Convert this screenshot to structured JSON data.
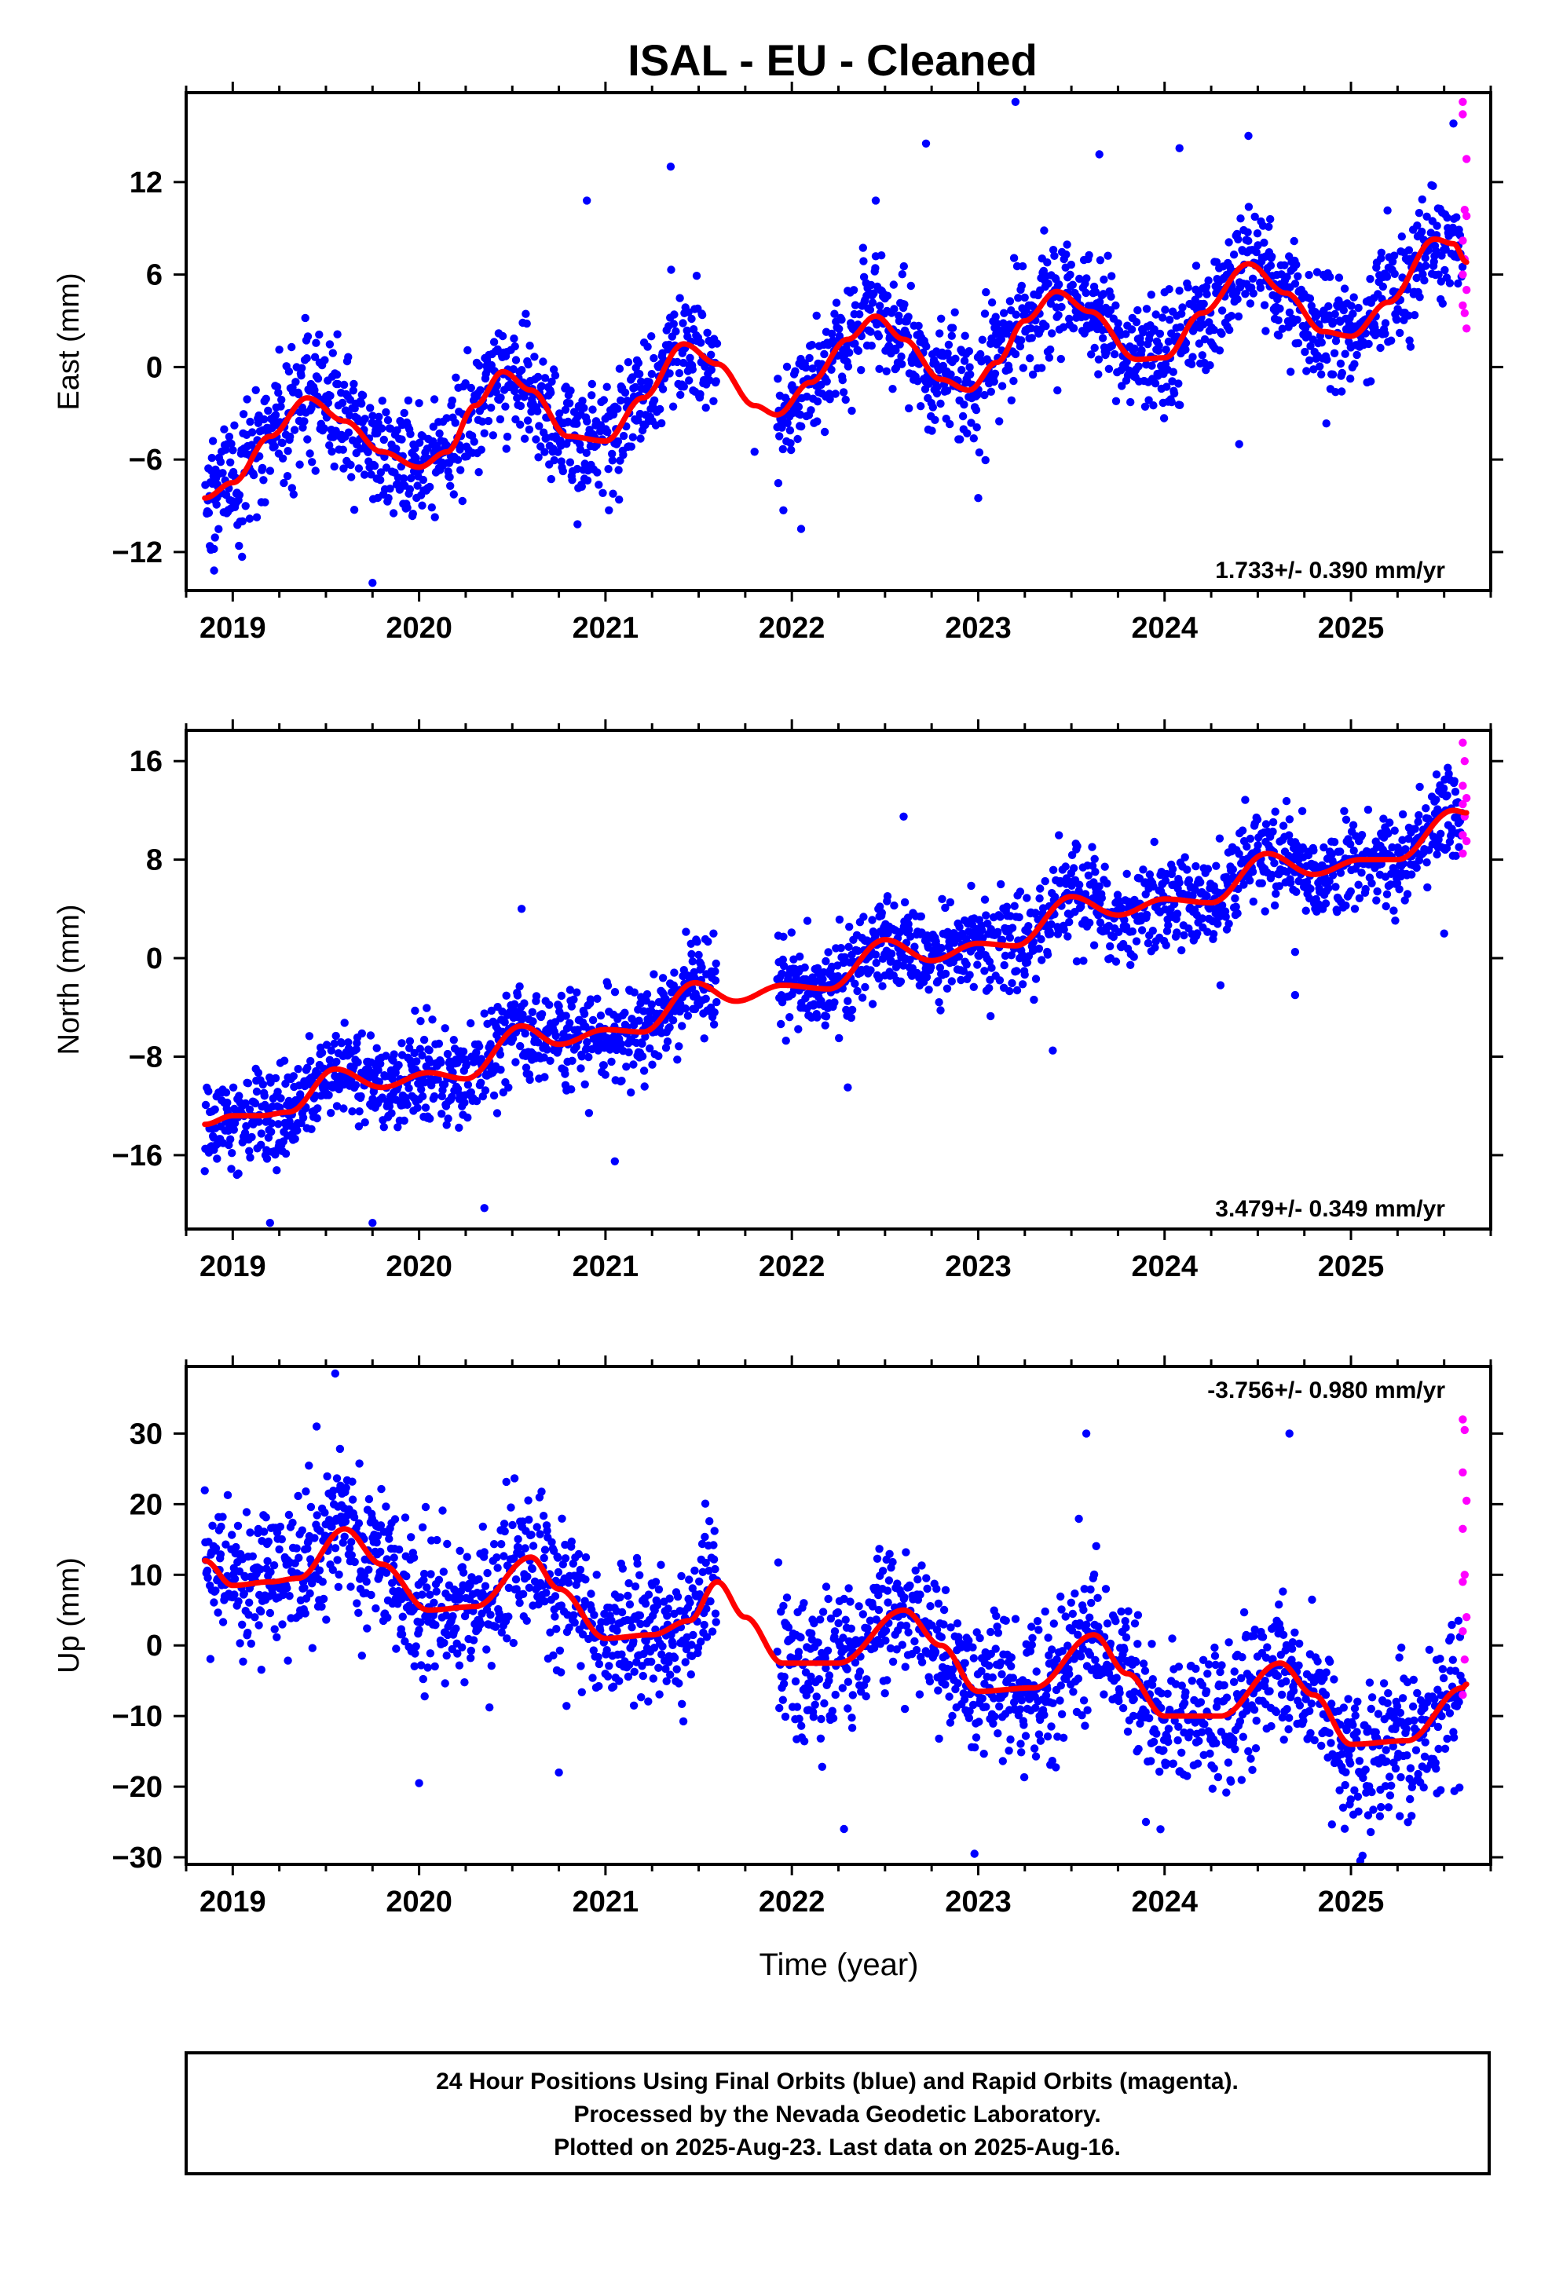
{
  "title": "ISAL  - EU - Cleaned",
  "xlabel": "Time (year)",
  "footer": [
    "24 Hour Positions Using Final Orbits (blue) and Rapid Orbits (magenta).",
    "Processed by the Nevada Geodetic Laboratory.",
    "Plotted on 2025-Aug-23. Last data on 2025-Aug-16."
  ],
  "colors": {
    "final_orbits": "#0000ff",
    "rapid_orbits": "#ff00ff",
    "model_fit": "#ff0000"
  },
  "chart_data": [
    {
      "type": "scatter",
      "component": "East",
      "ylabel": "East (mm)",
      "xlim": [
        2018.75,
        2025.75
      ],
      "ylim": [
        -14.5,
        17.8
      ],
      "xticks": [
        2019,
        2020,
        2021,
        2022,
        2023,
        2024,
        2025
      ],
      "yticks": [
        -12,
        -6,
        0,
        6,
        12
      ],
      "rate_label": "1.733+/- 0.390 mm/yr",
      "rate_position": "bottom-right",
      "data_start": 2018.85,
      "data_end": 2025.62,
      "data_gap": [
        2021.6,
        2021.92
      ],
      "scatter_sd": 1.9,
      "fit_curve": [
        [
          2018.85,
          -8.5
        ],
        [
          2019.0,
          -7.5
        ],
        [
          2019.2,
          -4.5
        ],
        [
          2019.4,
          -2.0
        ],
        [
          2019.6,
          -3.5
        ],
        [
          2019.8,
          -5.5
        ],
        [
          2020.0,
          -6.5
        ],
        [
          2020.15,
          -5.5
        ],
        [
          2020.3,
          -2.5
        ],
        [
          2020.45,
          -0.3
        ],
        [
          2020.6,
          -1.5
        ],
        [
          2020.8,
          -4.5
        ],
        [
          2021.0,
          -4.8
        ],
        [
          2021.2,
          -2.0
        ],
        [
          2021.42,
          1.5
        ],
        [
          2021.6,
          0.2
        ],
        [
          2021.8,
          -2.5
        ],
        [
          2021.92,
          -3.1
        ],
        [
          2022.1,
          -1.0
        ],
        [
          2022.3,
          1.8
        ],
        [
          2022.45,
          3.3
        ],
        [
          2022.6,
          1.8
        ],
        [
          2022.8,
          -0.8
        ],
        [
          2022.95,
          -1.5
        ],
        [
          2023.1,
          0.3
        ],
        [
          2023.25,
          3.0
        ],
        [
          2023.42,
          4.9
        ],
        [
          2023.6,
          3.6
        ],
        [
          2023.85,
          0.5
        ],
        [
          2024.0,
          0.6
        ],
        [
          2024.2,
          3.5
        ],
        [
          2024.45,
          6.7
        ],
        [
          2024.65,
          4.8
        ],
        [
          2024.85,
          2.3
        ],
        [
          2025.0,
          2.0
        ],
        [
          2025.2,
          4.2
        ],
        [
          2025.45,
          8.3
        ],
        [
          2025.55,
          8.0
        ],
        [
          2025.62,
          6.8
        ]
      ],
      "outliers": [
        [
          2019.75,
          -14.0
        ],
        [
          2018.9,
          -13.2
        ],
        [
          2021.35,
          13.0
        ],
        [
          2023.2,
          17.2
        ],
        [
          2022.72,
          14.5
        ],
        [
          2024.45,
          15.0
        ],
        [
          2024.08,
          14.2
        ],
        [
          2023.65,
          13.8
        ],
        [
          2020.9,
          10.8
        ],
        [
          2023.0,
          -8.5
        ],
        [
          2022.05,
          -10.5
        ],
        [
          2020.85,
          -10.2
        ],
        [
          2021.8,
          -5.5
        ],
        [
          2024.4,
          -5.0
        ],
        [
          2025.55,
          15.8
        ],
        [
          2022.45,
          10.8
        ]
      ],
      "rapid_points": [
        [
          2025.6,
          17.2
        ],
        [
          2025.6,
          16.4
        ],
        [
          2025.62,
          13.5
        ],
        [
          2025.61,
          10.2
        ],
        [
          2025.62,
          9.8
        ],
        [
          2025.6,
          8.2
        ],
        [
          2025.61,
          7.0
        ],
        [
          2025.6,
          6.0
        ],
        [
          2025.62,
          5.0
        ],
        [
          2025.6,
          4.0
        ],
        [
          2025.61,
          3.5
        ],
        [
          2025.62,
          2.5
        ]
      ]
    },
    {
      "type": "scatter",
      "component": "North",
      "ylabel": "North (mm)",
      "xlim": [
        2018.75,
        2025.75
      ],
      "ylim": [
        -22.0,
        18.5
      ],
      "xticks": [
        2019,
        2020,
        2021,
        2022,
        2023,
        2024,
        2025
      ],
      "yticks": [
        -16,
        -8,
        0,
        8,
        16
      ],
      "rate_label": "3.479+/- 0.349 mm/yr",
      "rate_position": "bottom-right",
      "data_start": 2018.85,
      "data_end": 2025.62,
      "data_gap": [
        2021.6,
        2021.92
      ],
      "scatter_sd": 1.9,
      "fit_curve": [
        [
          2018.85,
          -13.5
        ],
        [
          2019.0,
          -12.8
        ],
        [
          2019.15,
          -12.8
        ],
        [
          2019.3,
          -12.5
        ],
        [
          2019.55,
          -9.0
        ],
        [
          2019.8,
          -10.5
        ],
        [
          2020.05,
          -9.3
        ],
        [
          2020.25,
          -9.8
        ],
        [
          2020.55,
          -5.5
        ],
        [
          2020.75,
          -7.0
        ],
        [
          2021.0,
          -5.8
        ],
        [
          2021.2,
          -6.0
        ],
        [
          2021.48,
          -2.0
        ],
        [
          2021.7,
          -3.5
        ],
        [
          2021.95,
          -2.2
        ],
        [
          2022.2,
          -2.5
        ],
        [
          2022.5,
          1.5
        ],
        [
          2022.75,
          -0.2
        ],
        [
          2023.0,
          1.2
        ],
        [
          2023.2,
          1.0
        ],
        [
          2023.5,
          5.0
        ],
        [
          2023.75,
          3.5
        ],
        [
          2024.0,
          4.8
        ],
        [
          2024.25,
          4.5
        ],
        [
          2024.55,
          8.5
        ],
        [
          2024.8,
          6.8
        ],
        [
          2025.05,
          8.0
        ],
        [
          2025.25,
          8.0
        ],
        [
          2025.55,
          12.0
        ],
        [
          2025.62,
          11.8
        ]
      ],
      "outliers": [
        [
          2019.75,
          -21.5
        ],
        [
          2019.2,
          -21.5
        ],
        [
          2020.35,
          -20.3
        ],
        [
          2021.05,
          -16.5
        ],
        [
          2022.3,
          -10.5
        ],
        [
          2022.6,
          11.5
        ],
        [
          2020.55,
          4.0
        ],
        [
          2023.4,
          -7.5
        ],
        [
          2024.7,
          -3.0
        ],
        [
          2024.7,
          0.5
        ],
        [
          2025.5,
          2.0
        ],
        [
          2024.3,
          -2.2
        ]
      ],
      "rapid_points": [
        [
          2025.6,
          17.5
        ],
        [
          2025.61,
          16.0
        ],
        [
          2025.6,
          14.0
        ],
        [
          2025.62,
          13.0
        ],
        [
          2025.6,
          12.5
        ],
        [
          2025.61,
          11.5
        ],
        [
          2025.6,
          10.0
        ],
        [
          2025.62,
          9.5
        ],
        [
          2025.6,
          8.5
        ]
      ]
    },
    {
      "type": "scatter",
      "component": "Up",
      "ylabel": "Up (mm)",
      "xlim": [
        2018.75,
        2025.75
      ],
      "ylim": [
        -31.0,
        39.5
      ],
      "xticks": [
        2019,
        2020,
        2021,
        2022,
        2023,
        2024,
        2025
      ],
      "yticks": [
        -30,
        -20,
        -10,
        0,
        10,
        20,
        30
      ],
      "rate_label": "-3.756+/- 0.980 mm/yr",
      "rate_position": "top-right",
      "data_start": 2018.85,
      "data_end": 2025.62,
      "data_gap": [
        2021.6,
        2021.92
      ],
      "scatter_sd": 5.0,
      "fit_curve": [
        [
          2018.85,
          12.0
        ],
        [
          2019.0,
          8.5
        ],
        [
          2019.2,
          9.0
        ],
        [
          2019.35,
          9.5
        ],
        [
          2019.6,
          16.5
        ],
        [
          2019.8,
          11.5
        ],
        [
          2020.05,
          5.0
        ],
        [
          2020.3,
          5.5
        ],
        [
          2020.6,
          12.5
        ],
        [
          2020.75,
          8.0
        ],
        [
          2021.0,
          1.0
        ],
        [
          2021.25,
          1.5
        ],
        [
          2021.45,
          3.5
        ],
        [
          2021.6,
          9.0
        ],
        [
          2021.75,
          4.0
        ],
        [
          2021.95,
          -2.5
        ],
        [
          2022.25,
          -2.5
        ],
        [
          2022.6,
          5.0
        ],
        [
          2022.8,
          0.0
        ],
        [
          2023.0,
          -6.5
        ],
        [
          2023.3,
          -6.0
        ],
        [
          2023.62,
          1.5
        ],
        [
          2023.8,
          -4.0
        ],
        [
          2024.0,
          -10.0
        ],
        [
          2024.3,
          -10.0
        ],
        [
          2024.62,
          -2.5
        ],
        [
          2024.8,
          -7.0
        ],
        [
          2025.0,
          -14.0
        ],
        [
          2025.3,
          -13.5
        ],
        [
          2025.6,
          -6.0
        ],
        [
          2025.62,
          -5.5
        ]
      ],
      "outliers": [
        [
          2019.55,
          38.5
        ],
        [
          2023.58,
          30.0
        ],
        [
          2024.67,
          30.0
        ],
        [
          2020.0,
          -19.5
        ],
        [
          2022.28,
          -26.0
        ],
        [
          2022.98,
          -29.5
        ],
        [
          2025.05,
          -30.5
        ],
        [
          2019.45,
          31.0
        ],
        [
          2020.75,
          -18.0
        ],
        [
          2023.9,
          -25.0
        ]
      ],
      "rapid_points": [
        [
          2025.6,
          32.0
        ],
        [
          2025.61,
          30.5
        ],
        [
          2025.6,
          24.5
        ],
        [
          2025.62,
          20.5
        ],
        [
          2025.6,
          16.5
        ],
        [
          2025.61,
          10.0
        ],
        [
          2025.6,
          9.0
        ],
        [
          2025.62,
          4.0
        ],
        [
          2025.6,
          2.0
        ],
        [
          2025.61,
          -2.0
        ],
        [
          2025.6,
          -7.0
        ]
      ]
    }
  ]
}
